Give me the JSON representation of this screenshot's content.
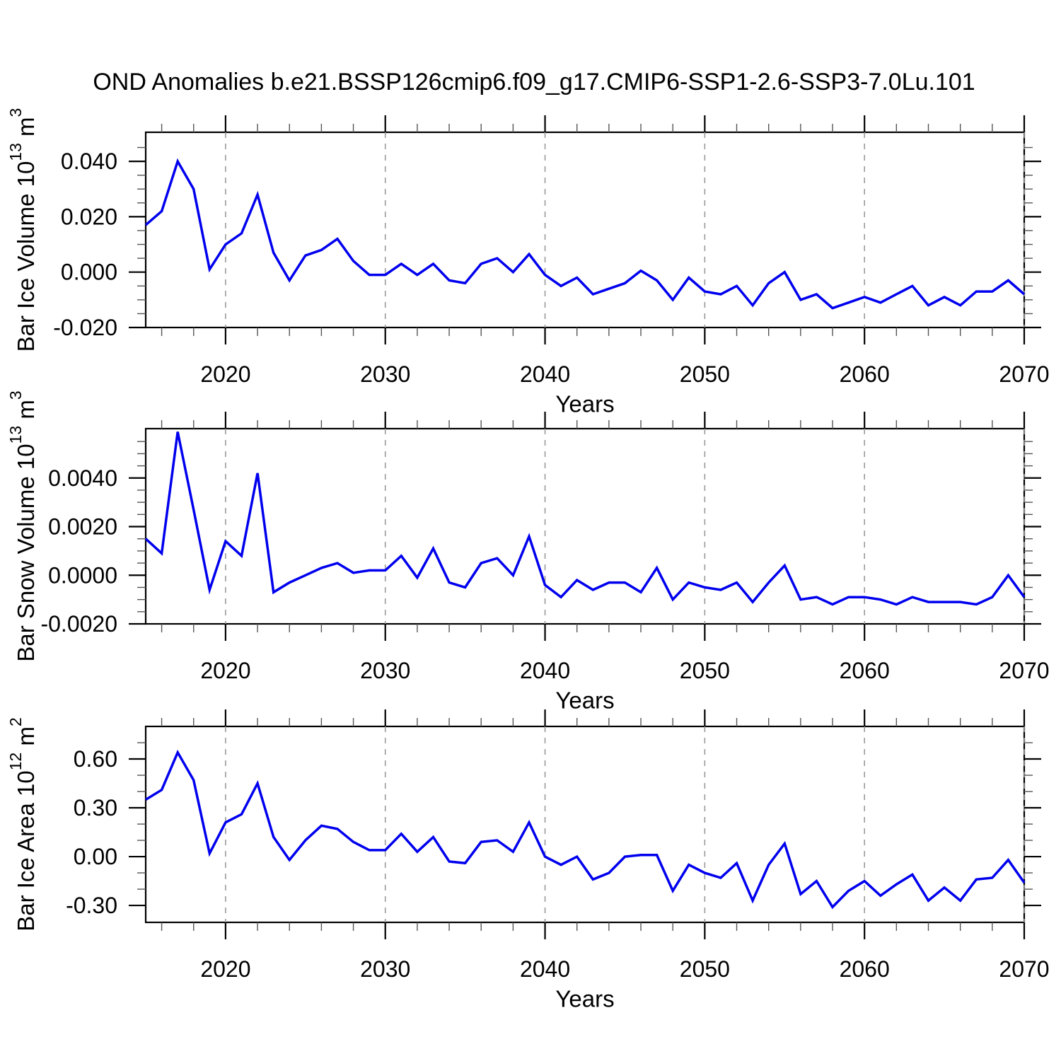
{
  "title": "OND Anomalies b.e21.BSSP126cmip6.f09_g17.CMIP6-SSP1-2.6-SSP3-7.0Lu.101",
  "line_color": "#0000EE",
  "grid_color": "#9A9A9A",
  "axis_color": "#000000",
  "chart_data": [
    {
      "id": "bar-ice-volume",
      "type": "line",
      "xlabel": "Years",
      "ylabel": {
        "prefix": "Bar Ice Volume 10",
        "exponent": "13",
        "unit": " m",
        "unit_exponent": "3"
      },
      "x": [
        2015,
        2016,
        2017,
        2018,
        2019,
        2020,
        2021,
        2022,
        2023,
        2024,
        2025,
        2026,
        2027,
        2028,
        2029,
        2030,
        2031,
        2032,
        2033,
        2034,
        2035,
        2036,
        2037,
        2038,
        2039,
        2040,
        2041,
        2042,
        2043,
        2044,
        2045,
        2046,
        2047,
        2048,
        2049,
        2050,
        2051,
        2052,
        2053,
        2054,
        2055,
        2056,
        2057,
        2058,
        2059,
        2060,
        2061,
        2062,
        2063,
        2064,
        2065,
        2066,
        2067,
        2068,
        2069,
        2070
      ],
      "values": [
        0.017,
        0.022,
        0.04,
        0.03,
        0.001,
        0.01,
        0.014,
        0.028,
        0.007,
        -0.003,
        0.006,
        0.008,
        0.012,
        0.004,
        -0.001,
        -0.001,
        0.003,
        -0.001,
        0.003,
        -0.003,
        -0.004,
        0.003,
        0.005,
        0.0,
        0.0065,
        -0.001,
        -0.005,
        -0.002,
        -0.008,
        -0.006,
        -0.004,
        0.0005,
        -0.003,
        -0.01,
        -0.002,
        -0.007,
        -0.008,
        -0.005,
        -0.012,
        -0.004,
        0.0,
        -0.01,
        -0.008,
        -0.013,
        -0.011,
        -0.009,
        -0.011,
        -0.008,
        -0.005,
        -0.012,
        -0.009,
        -0.012,
        -0.007,
        -0.007,
        -0.003,
        -0.008
      ],
      "xlim": [
        2015,
        2070
      ],
      "ylim": [
        -0.02,
        0.0505
      ],
      "yticks": {
        "values": [
          0.04,
          0.02,
          0.0,
          -0.02
        ],
        "labels": [
          "0.040",
          "0.020",
          "0.000",
          "-0.020"
        ],
        "minor_step": 0.005
      },
      "xticks": {
        "values": [
          2020,
          2030,
          2040,
          2050,
          2060,
          2070
        ],
        "labels": [
          "2020",
          "2030",
          "2040",
          "2050",
          "2060",
          "2070"
        ],
        "minor_step": 2
      },
      "grid_years": [
        2020,
        2030,
        2040,
        2050,
        2060,
        2070
      ]
    },
    {
      "id": "bar-snow-volume",
      "type": "line",
      "xlabel": "Years",
      "ylabel": {
        "prefix": "Bar Snow Volume 10",
        "exponent": "13",
        "unit": " m",
        "unit_exponent": "3"
      },
      "x": [
        2015,
        2016,
        2017,
        2018,
        2019,
        2020,
        2021,
        2022,
        2023,
        2024,
        2025,
        2026,
        2027,
        2028,
        2029,
        2030,
        2031,
        2032,
        2033,
        2034,
        2035,
        2036,
        2037,
        2038,
        2039,
        2040,
        2041,
        2042,
        2043,
        2044,
        2045,
        2046,
        2047,
        2048,
        2049,
        2050,
        2051,
        2052,
        2053,
        2054,
        2055,
        2056,
        2057,
        2058,
        2059,
        2060,
        2061,
        2062,
        2063,
        2064,
        2065,
        2066,
        2067,
        2068,
        2069,
        2070
      ],
      "values": [
        0.0015,
        0.0009,
        0.0059,
        0.0027,
        -0.0006,
        0.0014,
        0.0008,
        0.0042,
        -0.0007,
        -0.0003,
        0.0,
        0.0003,
        0.0005,
        0.0001,
        0.0002,
        0.0002,
        0.0008,
        -0.0001,
        0.0011,
        -0.0003,
        -0.0005,
        0.0005,
        0.0007,
        0.0,
        0.0016,
        -0.0004,
        -0.0009,
        -0.0002,
        -0.0006,
        -0.0003,
        -0.0003,
        -0.0007,
        0.0003,
        -0.001,
        -0.0003,
        -0.0005,
        -0.0006,
        -0.0003,
        -0.0011,
        -0.0003,
        0.0004,
        -0.001,
        -0.0009,
        -0.0012,
        -0.0009,
        -0.0009,
        -0.001,
        -0.0012,
        -0.0009,
        -0.0011,
        -0.0011,
        -0.0011,
        -0.0012,
        -0.0009,
        0.0,
        -0.0009
      ],
      "xlim": [
        2015,
        2070
      ],
      "ylim": [
        -0.002,
        0.00603
      ],
      "yticks": {
        "values": [
          0.004,
          0.002,
          0.0,
          -0.002
        ],
        "labels": [
          "0.0040",
          "0.0020",
          "0.0000",
          "-0.0020"
        ],
        "minor_step": 0.0005
      },
      "xticks": {
        "values": [
          2020,
          2030,
          2040,
          2050,
          2060,
          2070
        ],
        "labels": [
          "2020",
          "2030",
          "2040",
          "2050",
          "2060",
          "2070"
        ],
        "minor_step": 2
      },
      "grid_years": [
        2020,
        2030,
        2040,
        2050,
        2060,
        2070
      ]
    },
    {
      "id": "bar-ice-area",
      "type": "line",
      "xlabel": "Years",
      "ylabel": {
        "prefix": "Bar Ice Area 10",
        "exponent": "12",
        "unit": " m",
        "unit_exponent": "2"
      },
      "x": [
        2015,
        2016,
        2017,
        2018,
        2019,
        2020,
        2021,
        2022,
        2023,
        2024,
        2025,
        2026,
        2027,
        2028,
        2029,
        2030,
        2031,
        2032,
        2033,
        2034,
        2035,
        2036,
        2037,
        2038,
        2039,
        2040,
        2041,
        2042,
        2043,
        2044,
        2045,
        2046,
        2047,
        2048,
        2049,
        2050,
        2051,
        2052,
        2053,
        2054,
        2055,
        2056,
        2057,
        2058,
        2059,
        2060,
        2061,
        2062,
        2063,
        2064,
        2065,
        2066,
        2067,
        2068,
        2069,
        2070
      ],
      "values": [
        0.35,
        0.41,
        0.64,
        0.47,
        0.02,
        0.21,
        0.26,
        0.45,
        0.12,
        -0.02,
        0.1,
        0.19,
        0.17,
        0.09,
        0.04,
        0.04,
        0.14,
        0.03,
        0.12,
        -0.03,
        -0.04,
        0.09,
        0.1,
        0.03,
        0.21,
        0.0,
        -0.05,
        0.0,
        -0.14,
        -0.1,
        0.0,
        0.01,
        0.01,
        -0.21,
        -0.05,
        -0.1,
        -0.13,
        -0.04,
        -0.27,
        -0.05,
        0.08,
        -0.23,
        -0.15,
        -0.31,
        -0.21,
        -0.15,
        -0.24,
        -0.17,
        -0.11,
        -0.27,
        -0.19,
        -0.27,
        -0.14,
        -0.13,
        -0.02,
        -0.16
      ],
      "xlim": [
        2015,
        2070
      ],
      "ylim": [
        -0.404,
        0.8
      ],
      "yticks": {
        "values": [
          0.6,
          0.3,
          0.0,
          -0.3
        ],
        "labels": [
          "0.60",
          "0.30",
          "0.00",
          "-0.30"
        ],
        "minor_step": 0.1
      },
      "xticks": {
        "values": [
          2020,
          2030,
          2040,
          2050,
          2060,
          2070
        ],
        "labels": [
          "2020",
          "2030",
          "2040",
          "2050",
          "2060",
          "2070"
        ],
        "minor_step": 2
      },
      "grid_years": [
        2020,
        2030,
        2040,
        2050,
        2060,
        2070
      ]
    }
  ]
}
